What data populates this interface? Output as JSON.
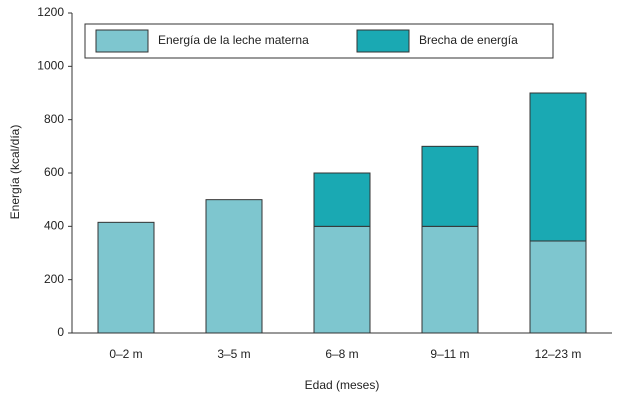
{
  "chart_data": {
    "type": "stacked_bar",
    "x_label": "Edad (meses)",
    "y_label": "Energía (kcal/día)",
    "categories": [
      "0–2 m",
      "3–5 m",
      "6–8 m",
      "9–11 m",
      "12–23 m"
    ],
    "series": [
      {
        "name": "Energía de la leche materna",
        "color": "#7ec6cf",
        "values": [
          415,
          500,
          400,
          400,
          345
        ]
      },
      {
        "name": "Brecha de energía",
        "color": "#1aa9b3",
        "values": [
          0,
          0,
          200,
          300,
          555
        ]
      }
    ],
    "ylim": [
      0,
      1200
    ],
    "yticks": [
      0,
      200,
      400,
      600,
      800,
      1000,
      1200
    ],
    "grid": false
  }
}
